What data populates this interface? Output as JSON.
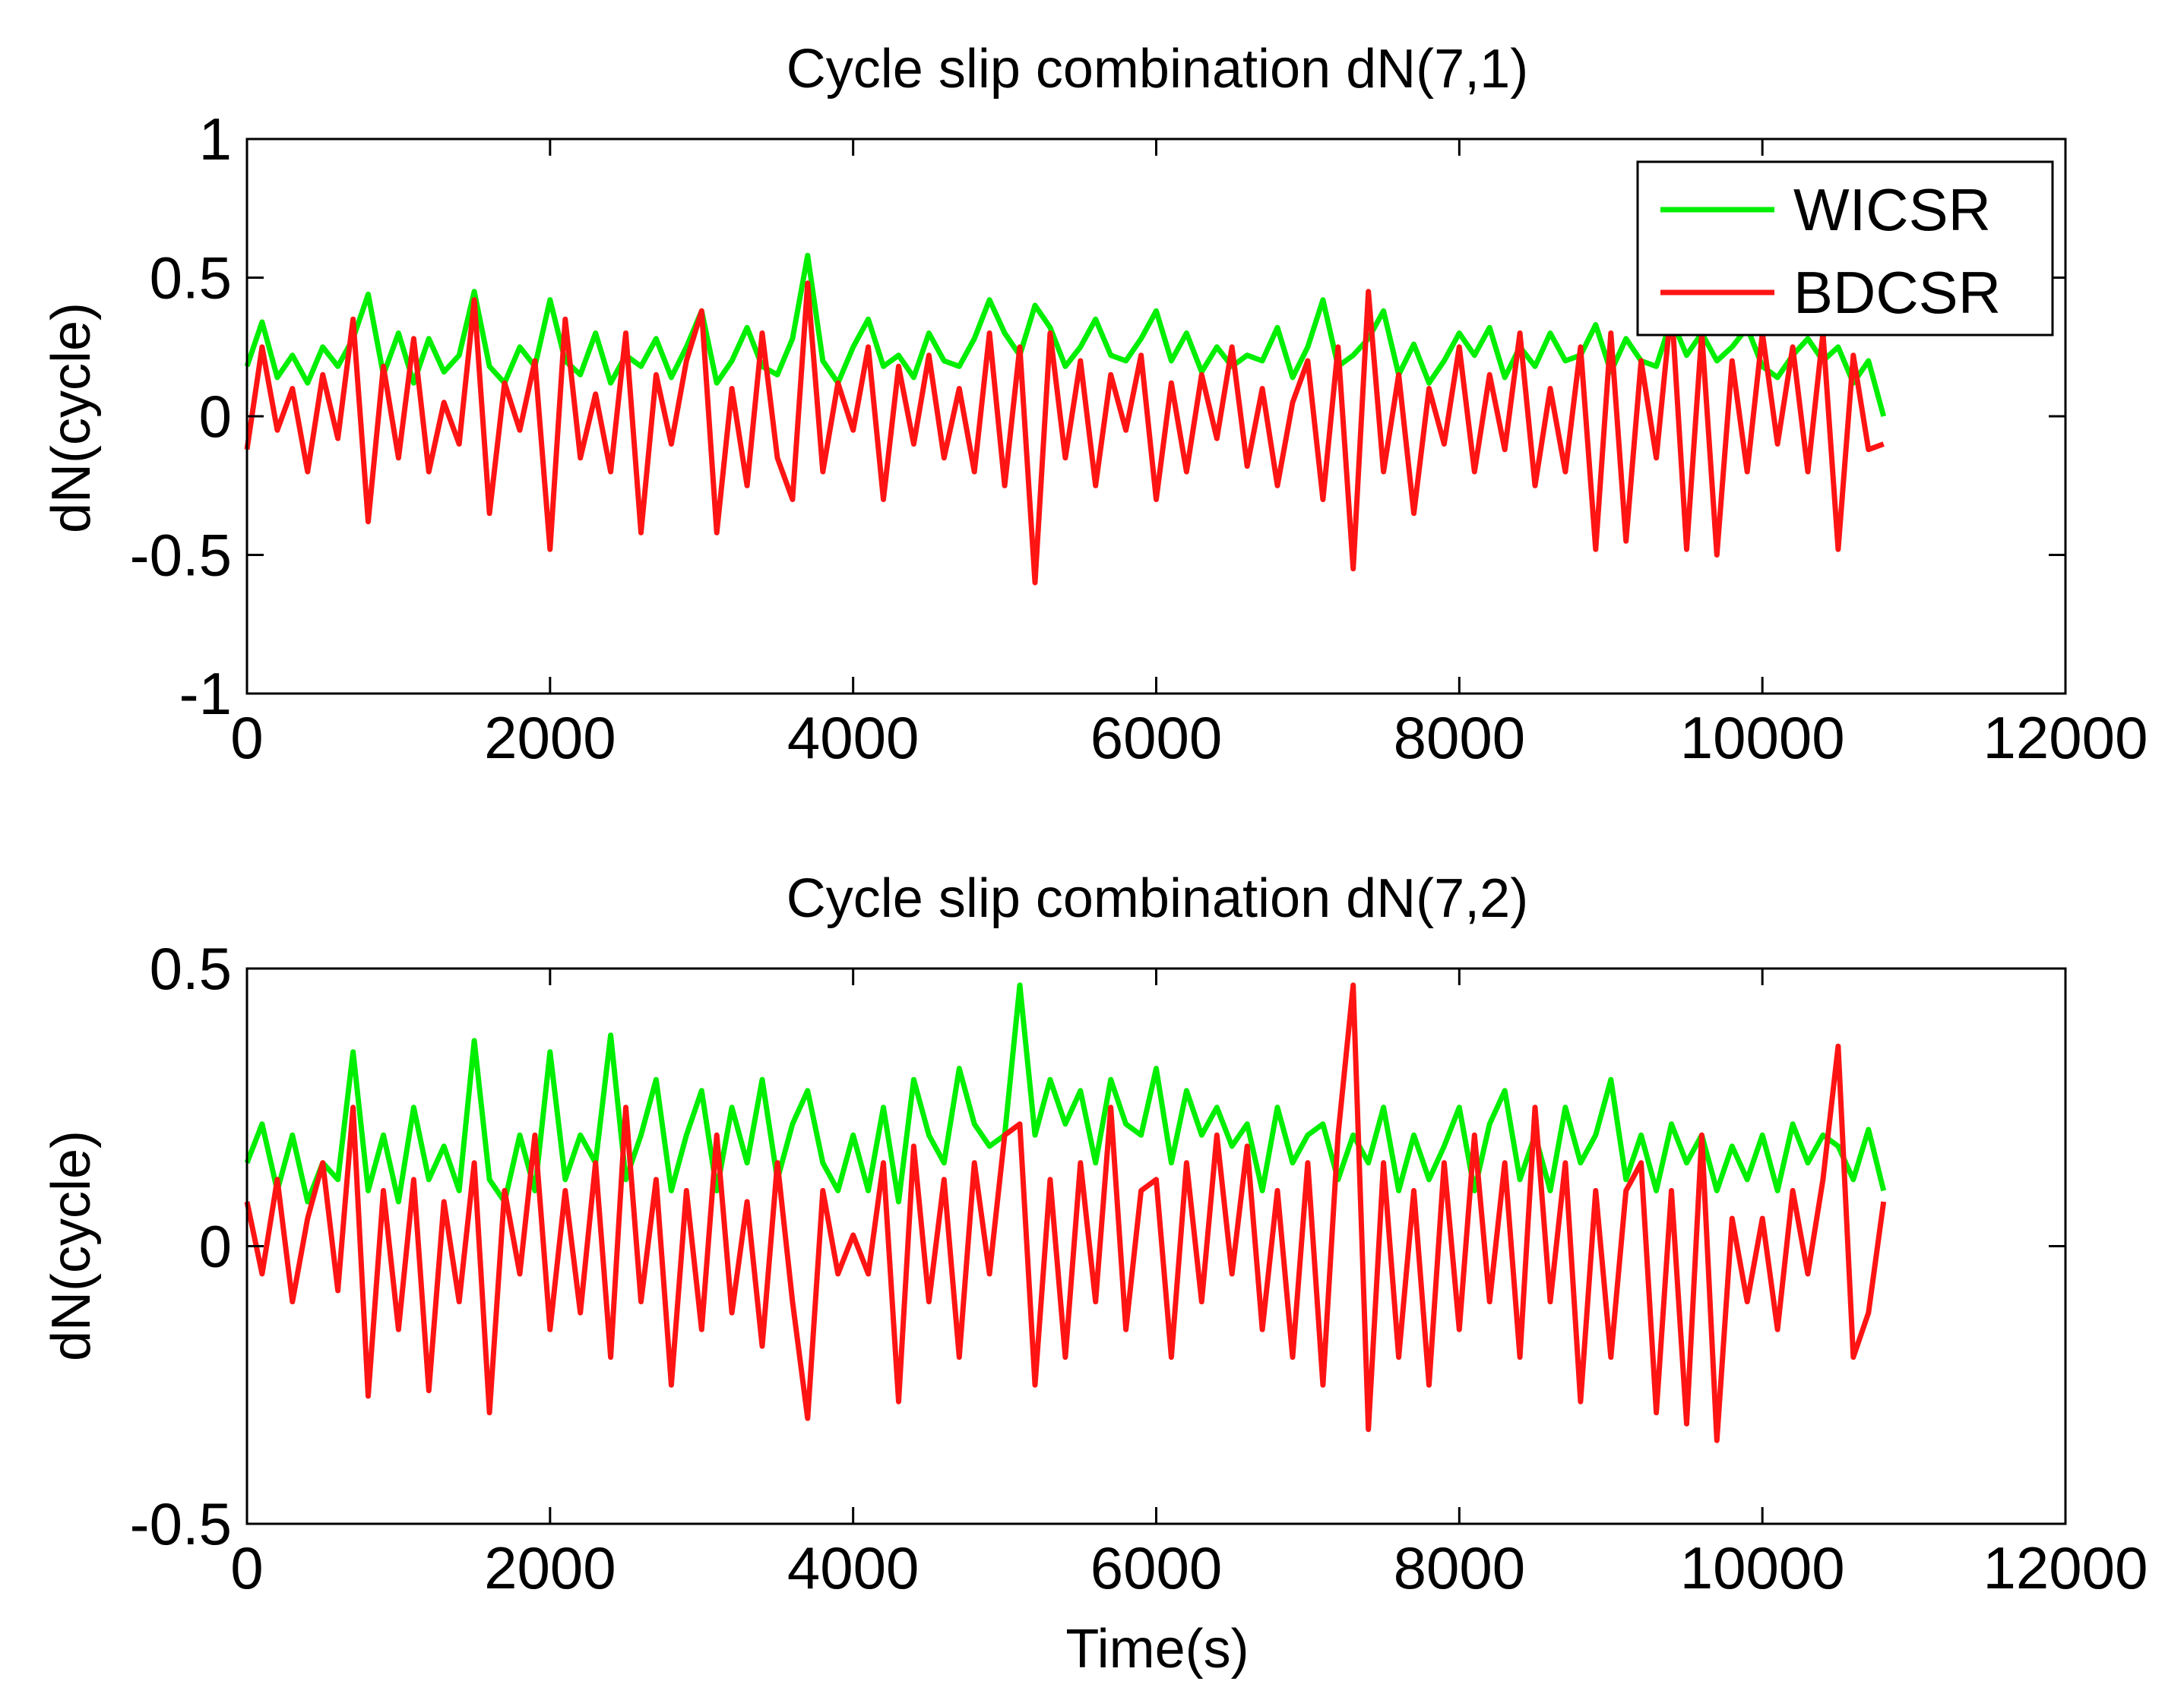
{
  "colors": {
    "wicsr": "#00ee00",
    "bdcsr": "#ff1414",
    "axis": "#000000",
    "background": "#ffffff"
  },
  "chart_data": [
    {
      "type": "line",
      "title": "Cycle slip combination dN(7,1)",
      "xlabel": "",
      "ylabel": "dN(cycle)",
      "xlim": [
        0,
        12000
      ],
      "ylim": [
        -1,
        1
      ],
      "xticks": [
        "0",
        "2000",
        "4000",
        "6000",
        "8000",
        "10000",
        "12000"
      ],
      "yticks": [
        "-1",
        "-0.5",
        "0",
        "0.5",
        "1"
      ],
      "legend": {
        "location": "top-right",
        "entries": [
          "WICSR",
          "BDCSR"
        ]
      },
      "series": [
        {
          "name": "WICSR",
          "color": "#00ee00",
          "x": [
            0,
            100,
            200,
            300,
            400,
            500,
            600,
            700,
            800,
            900,
            1000,
            1100,
            1200,
            1300,
            1400,
            1500,
            1600,
            1700,
            1800,
            1900,
            2000,
            2100,
            2200,
            2300,
            2400,
            2500,
            2600,
            2700,
            2800,
            2900,
            3000,
            3100,
            3200,
            3300,
            3400,
            3500,
            3600,
            3700,
            3800,
            3900,
            4000,
            4100,
            4200,
            4300,
            4400,
            4500,
            4600,
            4700,
            4800,
            4900,
            5000,
            5100,
            5200,
            5300,
            5400,
            5500,
            5600,
            5700,
            5800,
            5900,
            6000,
            6100,
            6200,
            6300,
            6400,
            6500,
            6600,
            6700,
            6800,
            6900,
            7000,
            7100,
            7200,
            7300,
            7400,
            7500,
            7600,
            7700,
            7800,
            7900,
            8000,
            8100,
            8200,
            8300,
            8400,
            8500,
            8600,
            8700,
            8800,
            8900,
            9000,
            9100,
            9200,
            9300,
            9400,
            9500,
            9600,
            9700,
            9800,
            9900,
            10000,
            10100,
            10200,
            10300,
            10400,
            10500,
            10600,
            10700,
            10800
          ],
          "y": [
            0.18,
            0.34,
            0.14,
            0.22,
            0.12,
            0.25,
            0.18,
            0.28,
            0.44,
            0.15,
            0.3,
            0.12,
            0.28,
            0.16,
            0.22,
            0.45,
            0.18,
            0.12,
            0.25,
            0.18,
            0.42,
            0.2,
            0.15,
            0.3,
            0.12,
            0.22,
            0.18,
            0.28,
            0.14,
            0.25,
            0.38,
            0.12,
            0.2,
            0.32,
            0.18,
            0.15,
            0.28,
            0.58,
            0.2,
            0.12,
            0.25,
            0.35,
            0.18,
            0.22,
            0.14,
            0.3,
            0.2,
            0.18,
            0.28,
            0.42,
            0.3,
            0.22,
            0.4,
            0.32,
            0.18,
            0.25,
            0.35,
            0.22,
            0.2,
            0.28,
            0.38,
            0.2,
            0.3,
            0.16,
            0.25,
            0.18,
            0.22,
            0.2,
            0.32,
            0.14,
            0.25,
            0.42,
            0.18,
            0.22,
            0.28,
            0.38,
            0.15,
            0.26,
            0.12,
            0.2,
            0.3,
            0.22,
            0.32,
            0.14,
            0.25,
            0.18,
            0.3,
            0.2,
            0.22,
            0.33,
            0.16,
            0.28,
            0.2,
            0.18,
            0.35,
            0.22,
            0.3,
            0.2,
            0.25,
            0.32,
            0.18,
            0.14,
            0.22,
            0.28,
            0.2,
            0.25,
            0.12,
            0.2,
            0.0
          ]
        },
        {
          "name": "BDCSR",
          "color": "#ff1414",
          "x": [
            0,
            100,
            200,
            300,
            400,
            500,
            600,
            700,
            800,
            900,
            1000,
            1100,
            1200,
            1300,
            1400,
            1500,
            1600,
            1700,
            1800,
            1900,
            2000,
            2100,
            2200,
            2300,
            2400,
            2500,
            2600,
            2700,
            2800,
            2900,
            3000,
            3100,
            3200,
            3300,
            3400,
            3500,
            3600,
            3700,
            3800,
            3900,
            4000,
            4100,
            4200,
            4300,
            4400,
            4500,
            4600,
            4700,
            4800,
            4900,
            5000,
            5100,
            5200,
            5300,
            5400,
            5500,
            5600,
            5700,
            5800,
            5900,
            6000,
            6100,
            6200,
            6300,
            6400,
            6500,
            6600,
            6700,
            6800,
            6900,
            7000,
            7100,
            7200,
            7300,
            7400,
            7500,
            7600,
            7700,
            7800,
            7900,
            8000,
            8100,
            8200,
            8300,
            8400,
            8500,
            8600,
            8700,
            8800,
            8900,
            9000,
            9100,
            9200,
            9300,
            9400,
            9500,
            9600,
            9700,
            9800,
            9900,
            10000,
            10100,
            10200,
            10300,
            10400,
            10500,
            10600,
            10700,
            10800
          ],
          "y": [
            -0.12,
            0.25,
            -0.05,
            0.1,
            -0.2,
            0.15,
            -0.08,
            0.35,
            -0.38,
            0.18,
            -0.15,
            0.28,
            -0.2,
            0.05,
            -0.1,
            0.42,
            -0.35,
            0.12,
            -0.05,
            0.2,
            -0.48,
            0.35,
            -0.15,
            0.08,
            -0.2,
            0.3,
            -0.42,
            0.15,
            -0.1,
            0.2,
            0.38,
            -0.42,
            0.1,
            -0.25,
            0.3,
            -0.15,
            -0.3,
            0.48,
            -0.2,
            0.12,
            -0.05,
            0.25,
            -0.3,
            0.18,
            -0.1,
            0.22,
            -0.15,
            0.1,
            -0.2,
            0.3,
            -0.25,
            0.25,
            -0.6,
            0.3,
            -0.15,
            0.2,
            -0.25,
            0.15,
            -0.05,
            0.22,
            -0.3,
            0.12,
            -0.2,
            0.15,
            -0.08,
            0.25,
            -0.18,
            0.1,
            -0.25,
            0.05,
            0.2,
            -0.3,
            0.25,
            -0.55,
            0.45,
            -0.2,
            0.15,
            -0.35,
            0.1,
            -0.1,
            0.25,
            -0.2,
            0.15,
            -0.12,
            0.3,
            -0.25,
            0.1,
            -0.2,
            0.25,
            -0.48,
            0.3,
            -0.45,
            0.2,
            -0.15,
            0.4,
            -0.48,
            0.3,
            -0.5,
            0.2,
            -0.2,
            0.3,
            -0.1,
            0.25,
            -0.2,
            0.3,
            -0.48,
            0.22,
            -0.12,
            -0.1
          ]
        }
      ]
    },
    {
      "type": "line",
      "title": "Cycle slip combination dN(7,2)",
      "xlabel": "Time(s)",
      "ylabel": "dN(cycle)",
      "xlim": [
        0,
        12000
      ],
      "ylim": [
        -0.5,
        0.5
      ],
      "xticks": [
        "0",
        "2000",
        "4000",
        "6000",
        "8000",
        "10000",
        "12000"
      ],
      "yticks": [
        "-0.5",
        "0",
        "0.5"
      ],
      "series": [
        {
          "name": "WICSR",
          "color": "#00ee00",
          "x": [
            0,
            100,
            200,
            300,
            400,
            500,
            600,
            700,
            800,
            900,
            1000,
            1100,
            1200,
            1300,
            1400,
            1500,
            1600,
            1700,
            1800,
            1900,
            2000,
            2100,
            2200,
            2300,
            2400,
            2500,
            2600,
            2700,
            2800,
            2900,
            3000,
            3100,
            3200,
            3300,
            3400,
            3500,
            3600,
            3700,
            3800,
            3900,
            4000,
            4100,
            4200,
            4300,
            4400,
            4500,
            4600,
            4700,
            4800,
            4900,
            5000,
            5100,
            5200,
            5300,
            5400,
            5500,
            5600,
            5700,
            5800,
            5900,
            6000,
            6100,
            6200,
            6300,
            6400,
            6500,
            6600,
            6700,
            6800,
            6900,
            7000,
            7100,
            7200,
            7300,
            7400,
            7500,
            7600,
            7700,
            7800,
            7900,
            8000,
            8100,
            8200,
            8300,
            8400,
            8500,
            8600,
            8700,
            8800,
            8900,
            9000,
            9100,
            9200,
            9300,
            9400,
            9500,
            9600,
            9700,
            9800,
            9900,
            10000,
            10100,
            10200,
            10300,
            10400,
            10500,
            10600,
            10700,
            10800
          ],
          "y": [
            0.15,
            0.22,
            0.1,
            0.2,
            0.08,
            0.15,
            0.12,
            0.35,
            0.1,
            0.2,
            0.08,
            0.25,
            0.12,
            0.18,
            0.1,
            0.37,
            0.12,
            0.08,
            0.2,
            0.1,
            0.35,
            0.12,
            0.2,
            0.15,
            0.38,
            0.12,
            0.2,
            0.3,
            0.1,
            0.2,
            0.28,
            0.1,
            0.25,
            0.15,
            0.3,
            0.12,
            0.22,
            0.28,
            0.15,
            0.1,
            0.2,
            0.1,
            0.25,
            0.08,
            0.3,
            0.2,
            0.15,
            0.32,
            0.22,
            0.18,
            0.2,
            0.47,
            0.2,
            0.3,
            0.22,
            0.28,
            0.15,
            0.3,
            0.22,
            0.2,
            0.32,
            0.15,
            0.28,
            0.2,
            0.25,
            0.18,
            0.22,
            0.1,
            0.25,
            0.15,
            0.2,
            0.22,
            0.12,
            0.2,
            0.15,
            0.25,
            0.1,
            0.2,
            0.12,
            0.18,
            0.25,
            0.1,
            0.22,
            0.28,
            0.12,
            0.2,
            0.1,
            0.25,
            0.15,
            0.2,
            0.3,
            0.12,
            0.2,
            0.1,
            0.22,
            0.15,
            0.2,
            0.1,
            0.18,
            0.12,
            0.2,
            0.1,
            0.22,
            0.15,
            0.2,
            0.18,
            0.12,
            0.21,
            0.1
          ]
        },
        {
          "name": "BDCSR",
          "color": "#ff1414",
          "x": [
            0,
            100,
            200,
            300,
            400,
            500,
            600,
            700,
            800,
            900,
            1000,
            1100,
            1200,
            1300,
            1400,
            1500,
            1600,
            1700,
            1800,
            1900,
            2000,
            2100,
            2200,
            2300,
            2400,
            2500,
            2600,
            2700,
            2800,
            2900,
            3000,
            3100,
            3200,
            3300,
            3400,
            3500,
            3600,
            3700,
            3800,
            3900,
            4000,
            4100,
            4200,
            4300,
            4400,
            4500,
            4600,
            4700,
            4800,
            4900,
            5000,
            5100,
            5200,
            5300,
            5400,
            5500,
            5600,
            5700,
            5800,
            5900,
            6000,
            6100,
            6200,
            6300,
            6400,
            6500,
            6600,
            6700,
            6800,
            6900,
            7000,
            7100,
            7200,
            7300,
            7400,
            7500,
            7600,
            7700,
            7800,
            7900,
            8000,
            8100,
            8200,
            8300,
            8400,
            8500,
            8600,
            8700,
            8800,
            8900,
            9000,
            9100,
            9200,
            9300,
            9400,
            9500,
            9600,
            9700,
            9800,
            9900,
            10000,
            10100,
            10200,
            10300,
            10400,
            10500,
            10600,
            10700,
            10800
          ],
          "y": [
            0.08,
            -0.05,
            0.12,
            -0.1,
            0.05,
            0.15,
            -0.08,
            0.25,
            -0.27,
            0.1,
            -0.15,
            0.12,
            -0.26,
            0.08,
            -0.1,
            0.15,
            -0.3,
            0.1,
            -0.05,
            0.2,
            -0.15,
            0.1,
            -0.12,
            0.15,
            -0.2,
            0.25,
            -0.1,
            0.12,
            -0.25,
            0.1,
            -0.15,
            0.2,
            -0.12,
            0.08,
            -0.18,
            0.15,
            -0.1,
            -0.31,
            0.1,
            -0.05,
            0.02,
            -0.05,
            0.15,
            -0.28,
            0.18,
            -0.1,
            0.12,
            -0.2,
            0.15,
            -0.05,
            0.2,
            0.22,
            -0.25,
            0.12,
            -0.2,
            0.15,
            -0.1,
            0.25,
            -0.15,
            0.1,
            0.12,
            -0.2,
            0.15,
            -0.1,
            0.2,
            -0.05,
            0.18,
            -0.15,
            0.1,
            -0.2,
            0.15,
            -0.25,
            0.2,
            0.47,
            -0.33,
            0.15,
            -0.2,
            0.1,
            -0.25,
            0.15,
            -0.15,
            0.2,
            -0.1,
            0.15,
            -0.2,
            0.25,
            -0.1,
            0.15,
            -0.28,
            0.1,
            -0.2,
            0.1,
            0.15,
            -0.3,
            0.1,
            -0.32,
            0.2,
            -0.35,
            0.05,
            -0.1,
            0.05,
            -0.15,
            0.1,
            -0.05,
            0.12,
            0.36,
            -0.2,
            -0.12,
            0.08
          ]
        }
      ]
    }
  ]
}
